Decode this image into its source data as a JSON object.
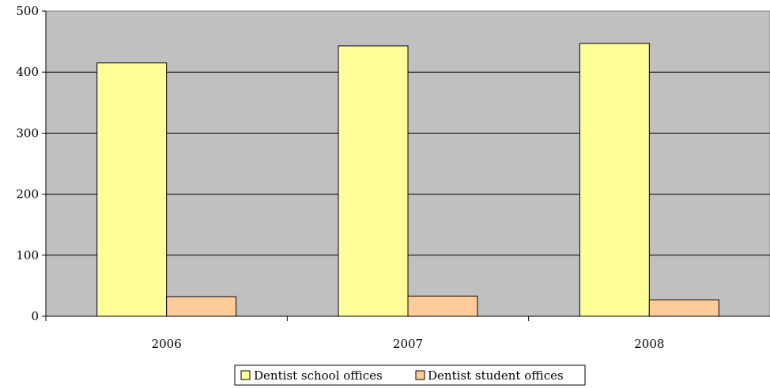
{
  "chart_data": {
    "type": "bar",
    "categories": [
      "2006",
      "2007",
      "2008"
    ],
    "series": [
      {
        "name": "Dentist school offices",
        "values": [
          415,
          443,
          447
        ],
        "color": "#FFFF99"
      },
      {
        "name": "Dentist student offices",
        "values": [
          32,
          33,
          27
        ],
        "color": "#FFCC99"
      }
    ],
    "ylim": [
      0,
      500
    ],
    "yticks": [
      "0",
      "100",
      "200",
      "300",
      "400",
      "500"
    ],
    "grid": true,
    "plot_background": "#C0C0C0",
    "legend_position": "bottom"
  }
}
